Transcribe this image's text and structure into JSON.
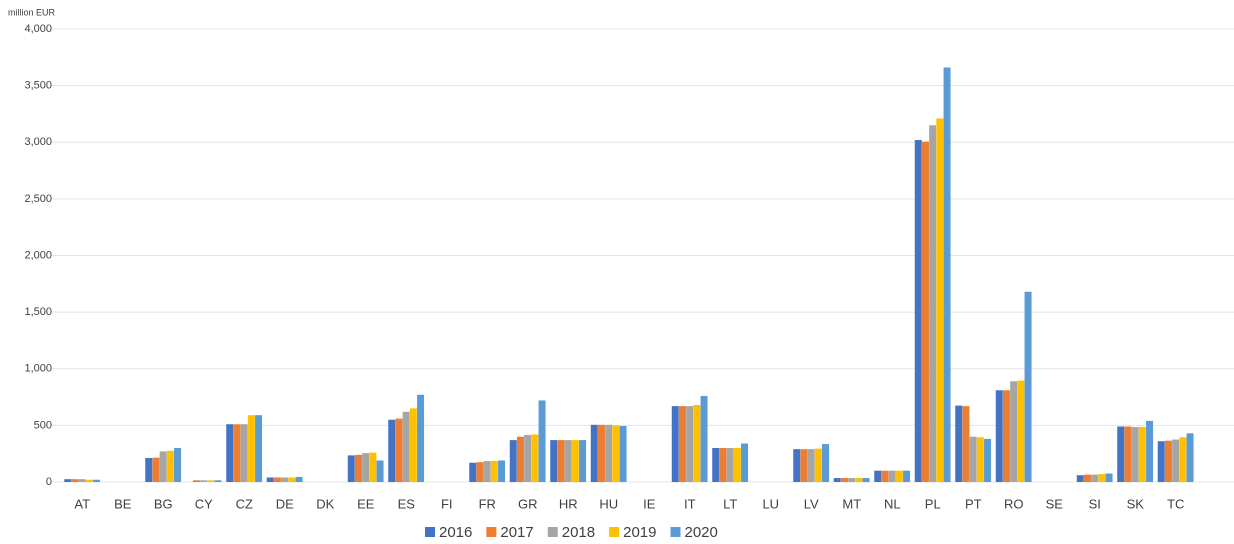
{
  "chart_data": {
    "type": "bar",
    "y_label": "million EUR",
    "categories": [
      "AT",
      "BE",
      "BG",
      "CY",
      "CZ",
      "DE",
      "DK",
      "EE",
      "ES",
      "FI",
      "FR",
      "GR",
      "HR",
      "HU",
      "IE",
      "IT",
      "LT",
      "LU",
      "LV",
      "MT",
      "NL",
      "PL",
      "PT",
      "RO",
      "SE",
      "SI",
      "SK",
      "TC"
    ],
    "series": [
      {
        "name": "2016",
        "color": "#4472c4",
        "values": [
          25,
          0,
          212,
          0,
          510,
          40,
          0,
          235,
          550,
          0,
          170,
          370,
          370,
          505,
          0,
          670,
          300,
          0,
          290,
          35,
          100,
          3020,
          675,
          810,
          0,
          60,
          490,
          360
        ]
      },
      {
        "name": "2017",
        "color": "#ed7d31",
        "values": [
          25,
          0,
          215,
          15,
          510,
          40,
          0,
          240,
          560,
          0,
          175,
          400,
          370,
          505,
          0,
          670,
          300,
          0,
          290,
          35,
          100,
          3005,
          670,
          810,
          0,
          65,
          490,
          365
        ]
      },
      {
        "name": "2018",
        "color": "#a5a5a5",
        "values": [
          25,
          0,
          270,
          15,
          510,
          40,
          0,
          255,
          620,
          0,
          185,
          415,
          370,
          505,
          0,
          670,
          300,
          0,
          290,
          35,
          100,
          3150,
          400,
          890,
          0,
          65,
          485,
          375
        ]
      },
      {
        "name": "2019",
        "color": "#ffc000",
        "values": [
          20,
          0,
          275,
          15,
          590,
          40,
          0,
          260,
          650,
          0,
          185,
          420,
          370,
          500,
          0,
          680,
          300,
          0,
          295,
          35,
          100,
          3210,
          395,
          895,
          0,
          70,
          485,
          395
        ]
      },
      {
        "name": "2020",
        "color": "#5b9bd5",
        "values": [
          20,
          0,
          300,
          15,
          590,
          45,
          0,
          190,
          770,
          0,
          190,
          720,
          370,
          495,
          0,
          760,
          340,
          0,
          335,
          35,
          100,
          3660,
          380,
          1680,
          0,
          75,
          540,
          430
        ]
      }
    ],
    "ylim": [
      0,
      4000
    ],
    "yticks": [
      0,
      500,
      {
        "value": 1000,
        "label": "1,000"
      },
      {
        "value": 1500,
        "label": "1,500"
      },
      {
        "value": 2000,
        "label": "2,000"
      },
      {
        "value": 2500,
        "label": "2,500"
      },
      {
        "value": 3000,
        "label": "3,000"
      },
      {
        "value": 3500,
        "label": "3,500"
      },
      {
        "value": 4000,
        "label": "4,000"
      }
    ],
    "grid": true,
    "legend": "bottom"
  }
}
